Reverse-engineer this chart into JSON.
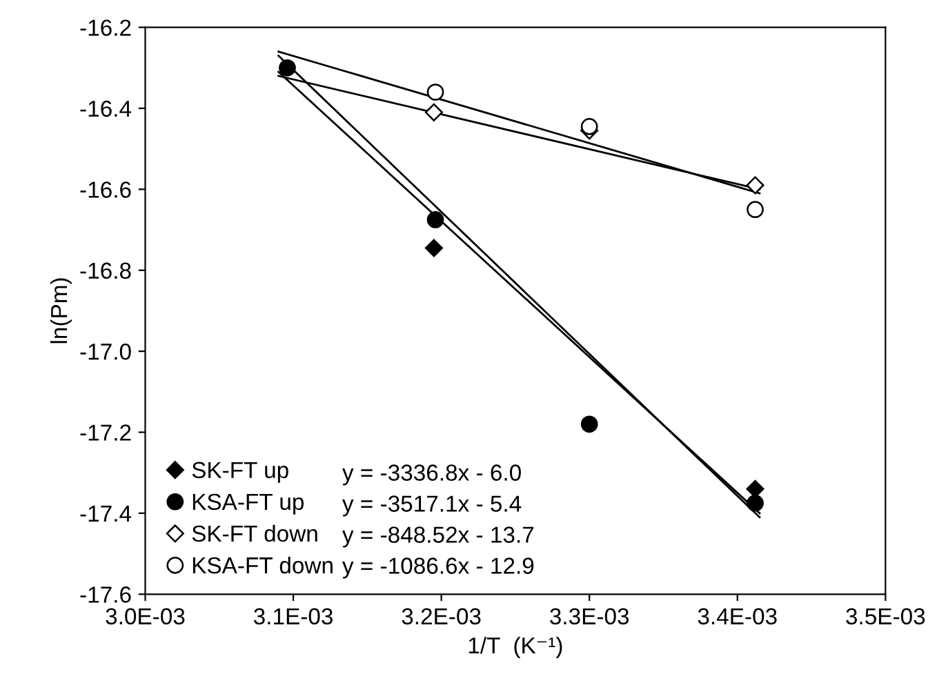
{
  "chart_data": {
    "type": "scatter",
    "xlabel": "1/T  (K⁻¹)",
    "ylabel": "ln(Pm)",
    "xlim": [
      0.003,
      0.0035
    ],
    "ylim": [
      -17.6,
      -16.2
    ],
    "xticks": [
      {
        "value": 0.003,
        "label": "3.0E-03"
      },
      {
        "value": 0.0031,
        "label": "3.1E-03"
      },
      {
        "value": 0.0032,
        "label": "3.2E-03"
      },
      {
        "value": 0.0033,
        "label": "3.3E-03"
      },
      {
        "value": 0.0034,
        "label": "3.4E-03"
      },
      {
        "value": 0.0035,
        "label": "3.5E-03"
      }
    ],
    "yticks": [
      -17.6,
      -17.4,
      -17.2,
      {
        "value": -17.0,
        "label": "-17.0"
      },
      -16.8,
      -16.6,
      -16.4,
      -16.2
    ],
    "grid": false,
    "legend": "bottom left",
    "series": [
      {
        "type": "line",
        "marker": "none",
        "color": "#000000",
        "x": [
          0.00309,
          0.003415
        ],
        "values": [
          -16.31,
          -17.4
        ]
      },
      {
        "type": "line",
        "marker": "none",
        "color": "#000000",
        "x": [
          0.00309,
          0.003415
        ],
        "values": [
          -16.27,
          -17.41
        ]
      },
      {
        "type": "line",
        "marker": "none",
        "color": "#000000",
        "x": [
          0.00309,
          0.003415
        ],
        "values": [
          -16.32,
          -16.6
        ]
      },
      {
        "type": "line",
        "marker": "none",
        "color": "#000000",
        "x": [
          0.00309,
          0.003415
        ],
        "values": [
          -16.26,
          -16.61
        ]
      },
      {
        "name": "SK-FT up",
        "marker": "diamond",
        "color": "#000000",
        "x": [
          0.003195,
          0.003412
        ],
        "values": [
          -16.745,
          -17.34
        ]
      },
      {
        "name": "KSA-FT up",
        "marker": "circle",
        "color": "#000000",
        "x": [
          0.003096,
          0.003196,
          0.0033,
          0.003412
        ],
        "values": [
          -16.3,
          -16.675,
          -17.18,
          -17.375
        ]
      },
      {
        "name": "SK-FT down",
        "marker": "diamond",
        "color": "#ffffff",
        "x": [
          0.003195,
          0.0033,
          0.003412
        ],
        "values": [
          -16.41,
          -16.455,
          -16.59
        ]
      },
      {
        "name": "KSA-FT down",
        "marker": "circle",
        "color": "#ffffff",
        "x": [
          0.003196,
          0.0033,
          0.003412
        ],
        "values": [
          -16.36,
          -16.445,
          -16.65
        ]
      }
    ],
    "annotations": [
      "y = -3336.8x - 6.0",
      "y = -3517.1x - 5.4",
      "y = -848.52x - 13.7",
      "y = -1086.6x - 12.9"
    ]
  }
}
